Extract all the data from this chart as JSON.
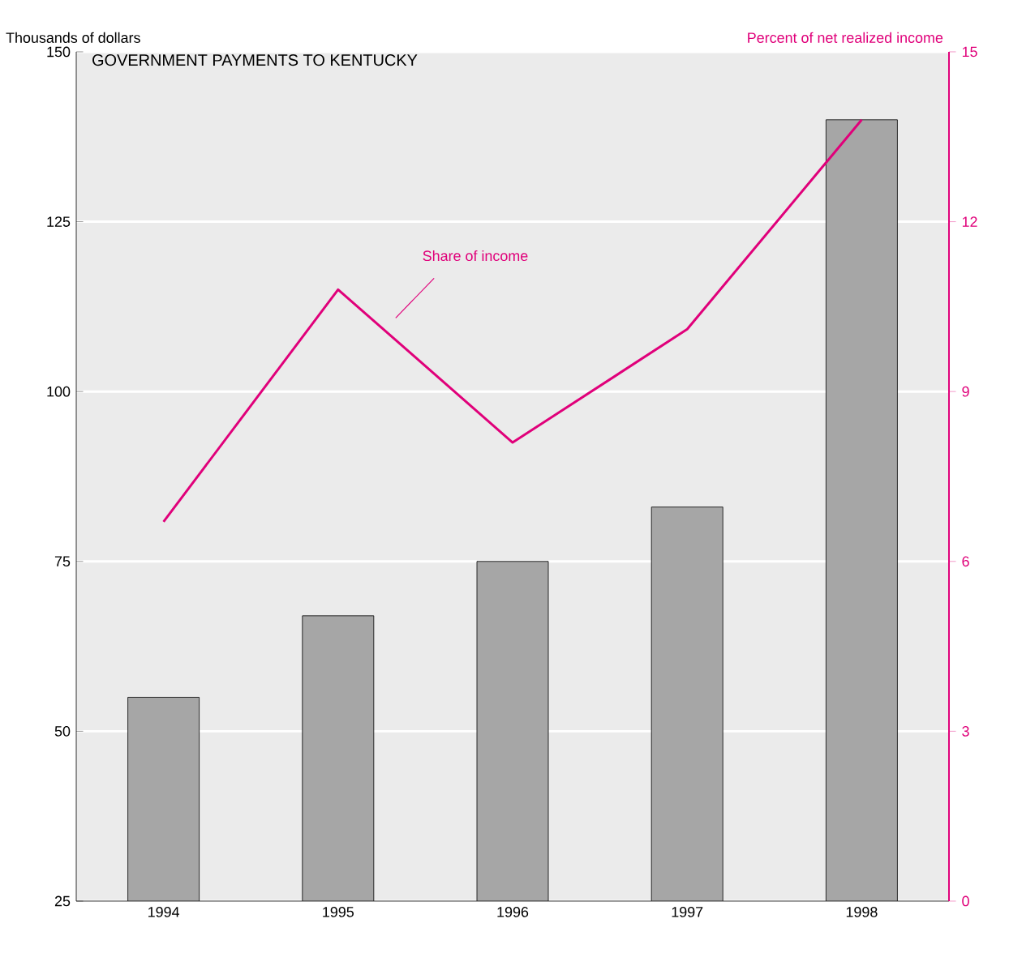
{
  "chart_data": {
    "type": "bar",
    "title": "GOVERNMENT PAYMENTS TO KENTUCKY",
    "categories": [
      "1994",
      "1995",
      "1996",
      "1997",
      "1998"
    ],
    "series": [
      {
        "color": "#a6a6a6",
        "values": [
          55,
          67,
          75,
          83,
          140
        ]
      },
      {
        "type": "line",
        "axis": "y2",
        "color": "#e0007a",
        "values": [
          6.7,
          10.8,
          8.1,
          10.1,
          13.8
        ]
      }
    ],
    "ylabel": "Thousands of dollars",
    "y2label": "Percent of net realized income",
    "ylim": [
      25,
      150
    ],
    "yticks": [
      25,
      50,
      75,
      100,
      125,
      150
    ],
    "y2lim": [
      0,
      15
    ],
    "y2ticks": [
      0,
      3,
      6,
      9,
      12,
      15
    ],
    "grid": "y",
    "annotations": [
      "Share of income"
    ]
  }
}
